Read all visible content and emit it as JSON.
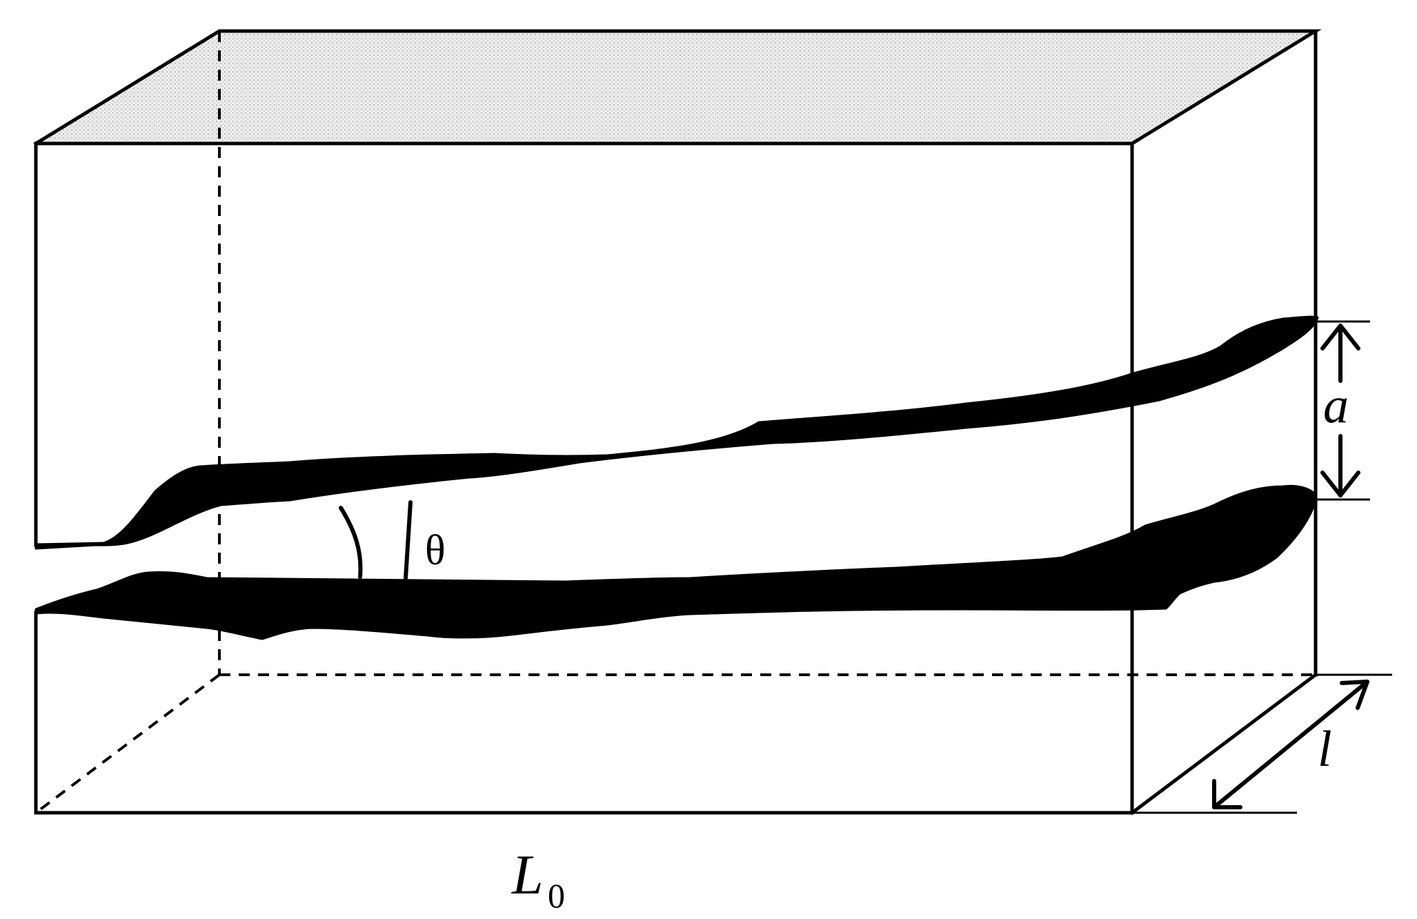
{
  "labels": {
    "aperture": "a",
    "depth": "l",
    "length_main": "L",
    "length_sub": "0",
    "angle": "θ"
  },
  "colors": {
    "stroke": "#000000",
    "top_face": "#e4e4e4",
    "background": "#ffffff"
  }
}
